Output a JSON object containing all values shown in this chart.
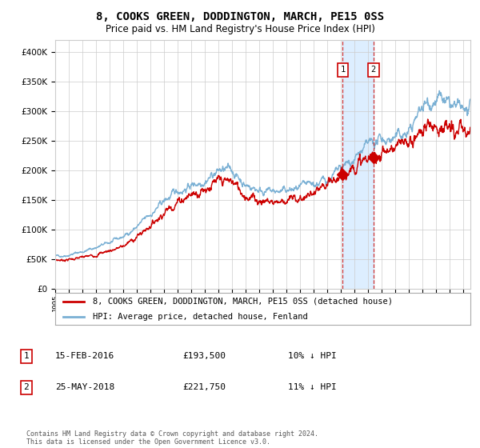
{
  "title": "8, COOKS GREEN, DODDINGTON, MARCH, PE15 0SS",
  "subtitle": "Price paid vs. HM Land Registry's House Price Index (HPI)",
  "red_label": "8, COOKS GREEN, DODDINGTON, MARCH, PE15 0SS (detached house)",
  "blue_label": "HPI: Average price, detached house, Fenland",
  "annotation1_date": "15-FEB-2016",
  "annotation1_price": "£193,500",
  "annotation1_pct": "10% ↓ HPI",
  "annotation2_date": "25-MAY-2018",
  "annotation2_price": "£221,750",
  "annotation2_pct": "11% ↓ HPI",
  "footer": "Contains HM Land Registry data © Crown copyright and database right 2024.\nThis data is licensed under the Open Government Licence v3.0.",
  "red_color": "#cc0000",
  "blue_color": "#7ab0d4",
  "highlight_color": "#ddeeff",
  "annotation_line_color": "#cc3333",
  "ylim": [
    0,
    420000
  ],
  "yticks": [
    0,
    50000,
    100000,
    150000,
    200000,
    250000,
    300000,
    350000,
    400000
  ],
  "background_color": "#ffffff",
  "grid_color": "#cccccc",
  "ann1_t": 2016.12,
  "ann2_t": 2018.38,
  "ann1_v": 193500,
  "ann2_v": 221750,
  "blue_keypoints_t": [
    1995,
    1996,
    1997,
    1998,
    1999,
    2000,
    2001,
    2002,
    2003,
    2004,
    2005,
    2006,
    2007,
    2008,
    2009,
    2010,
    2011,
    2012,
    2013,
    2014,
    2015,
    2016,
    2017,
    2018,
    2019,
    2020,
    2021,
    2022,
    2023,
    2024,
    2025
  ],
  "blue_keypoints_v": [
    55000,
    58000,
    63000,
    70000,
    78000,
    88000,
    105000,
    125000,
    148000,
    165000,
    175000,
    185000,
    200000,
    200000,
    175000,
    168000,
    163000,
    165000,
    168000,
    175000,
    185000,
    200000,
    220000,
    240000,
    253000,
    255000,
    265000,
    310000,
    325000,
    305000,
    300000
  ],
  "red_keypoints_t": [
    1995,
    1996,
    1997,
    1998,
    1999,
    2000,
    2001,
    2002,
    2003,
    2004,
    2005,
    2006,
    2007,
    2008,
    2009,
    2010,
    2011,
    2012,
    2013,
    2014,
    2015,
    2016.12,
    2017,
    2018.38,
    2019,
    2020,
    2021,
    2022,
    2023,
    2024,
    2025
  ],
  "red_keypoints_v": [
    48000,
    50000,
    53000,
    58000,
    65000,
    72000,
    88000,
    108000,
    130000,
    148000,
    160000,
    170000,
    180000,
    182000,
    158000,
    150000,
    148000,
    150000,
    153000,
    160000,
    172000,
    193500,
    210000,
    221750,
    232000,
    237000,
    248000,
    270000,
    282000,
    265000,
    263000
  ]
}
